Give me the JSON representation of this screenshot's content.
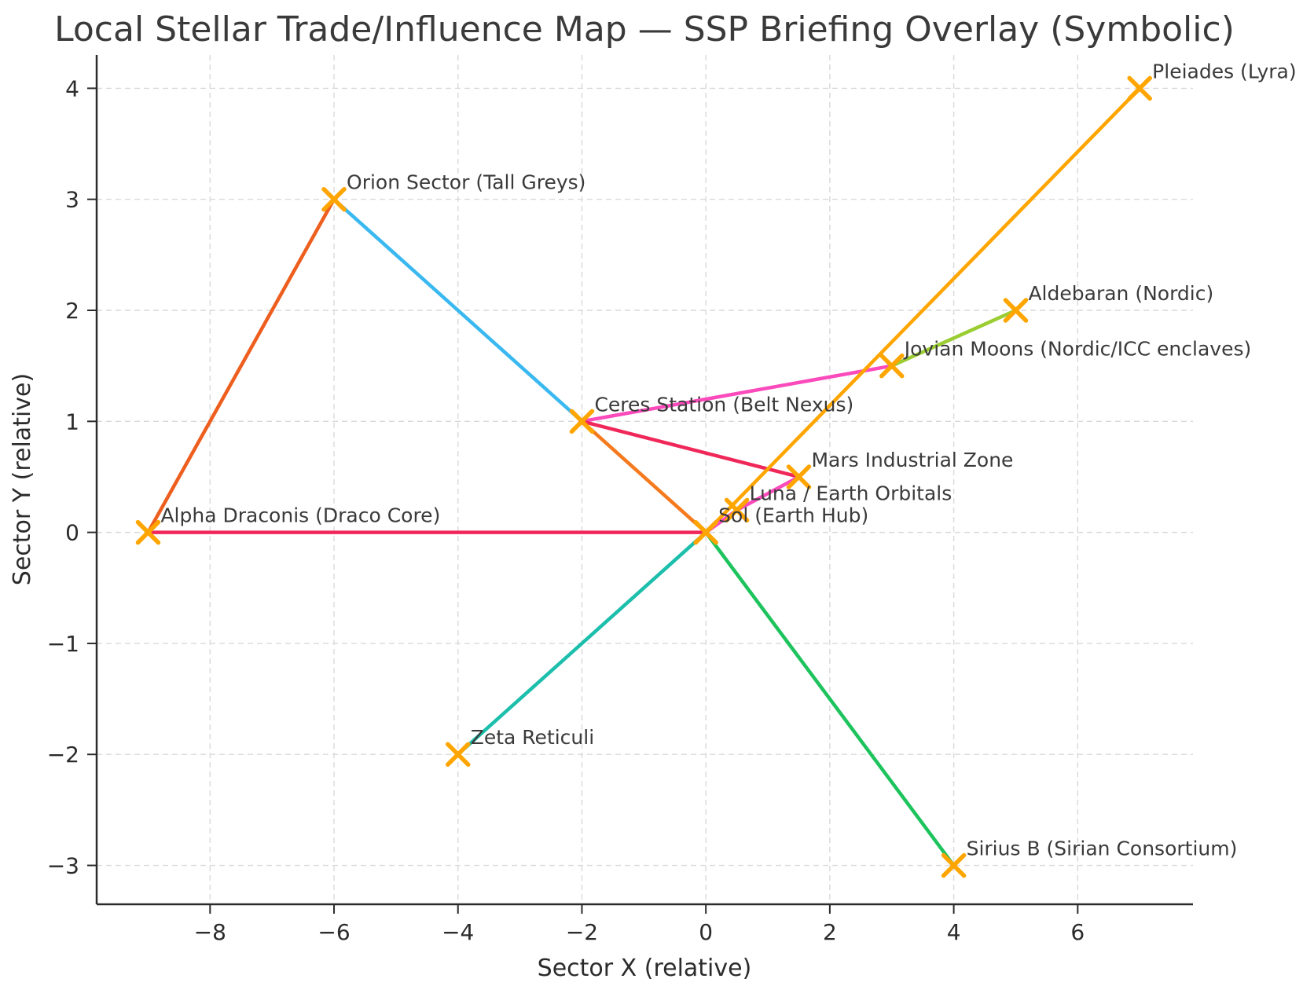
{
  "chart_data": {
    "type": "scatter",
    "title": "Local Stellar Trade/Influence Map — SSP Briefing Overlay (Symbolic)",
    "xlabel": "Sector X (relative)",
    "ylabel": "Sector Y (relative)",
    "xlim": [
      -9.83,
      7.86
    ],
    "ylim": [
      -3.35,
      4.3
    ],
    "xticks": [
      -8,
      -6,
      -4,
      -2,
      0,
      2,
      4,
      6
    ],
    "xtick_labels": [
      "−8",
      "−6",
      "−4",
      "−2",
      "0",
      "2",
      "4",
      "6"
    ],
    "yticks": [
      -3,
      -2,
      -1,
      0,
      1,
      2,
      3,
      4
    ],
    "ytick_labels": [
      "−3",
      "−2",
      "−1",
      "0",
      "1",
      "2",
      "3",
      "4"
    ],
    "grid": {
      "on": true,
      "style": "dashed",
      "color": "#d9d9d9"
    },
    "legend": "none",
    "marker": {
      "shape": "x",
      "color": "#FFA500",
      "half_size": 13,
      "stroke_width": 5.5
    },
    "line_width": 4.5,
    "nodes": [
      {
        "label": "Sol (Earth Hub)",
        "x": 0,
        "y": 0
      },
      {
        "label": "Luna / Earth Orbitals",
        "x": 0.5,
        "y": 0.2
      },
      {
        "label": "Mars Industrial Zone",
        "x": 1.5,
        "y": 0.5
      },
      {
        "label": "Ceres Station (Belt Nexus)",
        "x": -2,
        "y": 1
      },
      {
        "label": "Jovian Moons (Nordic/ICC enclaves)",
        "x": 3,
        "y": 1.5
      },
      {
        "label": "Aldebaran (Nordic)",
        "x": 5,
        "y": 2
      },
      {
        "label": "Pleiades (Lyra)",
        "x": 7,
        "y": 4
      },
      {
        "label": "Orion Sector (Tall Greys)",
        "x": -6,
        "y": 3
      },
      {
        "label": "Alpha Draconis (Draco Core)",
        "x": -9,
        "y": 0
      },
      {
        "label": "Zeta Reticuli",
        "x": -4,
        "y": -2
      },
      {
        "label": "Sirius B (Sirian Consortium)",
        "x": 4,
        "y": -3
      }
    ],
    "edges": [
      {
        "from": "Alpha Draconis (Draco Core)",
        "to": "Orion Sector (Tall Greys)",
        "color": "#EE5E1E"
      },
      {
        "from": "Orion Sector (Tall Greys)",
        "to": "Ceres Station (Belt Nexus)",
        "color": "#3AB8F0"
      },
      {
        "from": "Ceres Station (Belt Nexus)",
        "to": "Jovian Moons (Nordic/ICC enclaves)",
        "color": "#FB4ABC"
      },
      {
        "from": "Jovian Moons (Nordic/ICC enclaves)",
        "to": "Aldebaran (Nordic)",
        "color": "#9ACD32"
      },
      {
        "from": "Ceres Station (Belt Nexus)",
        "to": "Mars Industrial Zone",
        "color": "#F0285A"
      },
      {
        "from": "Alpha Draconis (Draco Core)",
        "to": "Sol (Earth Hub)",
        "color": "#F0285A"
      },
      {
        "from": "Ceres Station (Belt Nexus)",
        "to": "Sol (Earth Hub)",
        "color": "#F5791D"
      },
      {
        "from": "Sol (Earth Hub)",
        "to": "Pleiades (Lyra)",
        "color": "#FFA500"
      },
      {
        "from": "Sol (Earth Hub)",
        "to": "Zeta Reticuli",
        "color": "#1CBEAC"
      },
      {
        "from": "Sol (Earth Hub)",
        "to": "Sirius B (Sirian Consortium)",
        "color": "#1DC35C"
      },
      {
        "from": "Sol (Earth Hub)",
        "to": "Luna / Earth Orbitals",
        "color": "#FB4ABC"
      },
      {
        "from": "Luna / Earth Orbitals",
        "to": "Mars Industrial Zone",
        "color": "#FB4ABC"
      }
    ],
    "colors": {
      "background": "#ffffff",
      "spine": "#2b2b2b",
      "grid": "#d9d9d9",
      "text": "#3a3a3a",
      "marker": "#FFA500"
    }
  }
}
